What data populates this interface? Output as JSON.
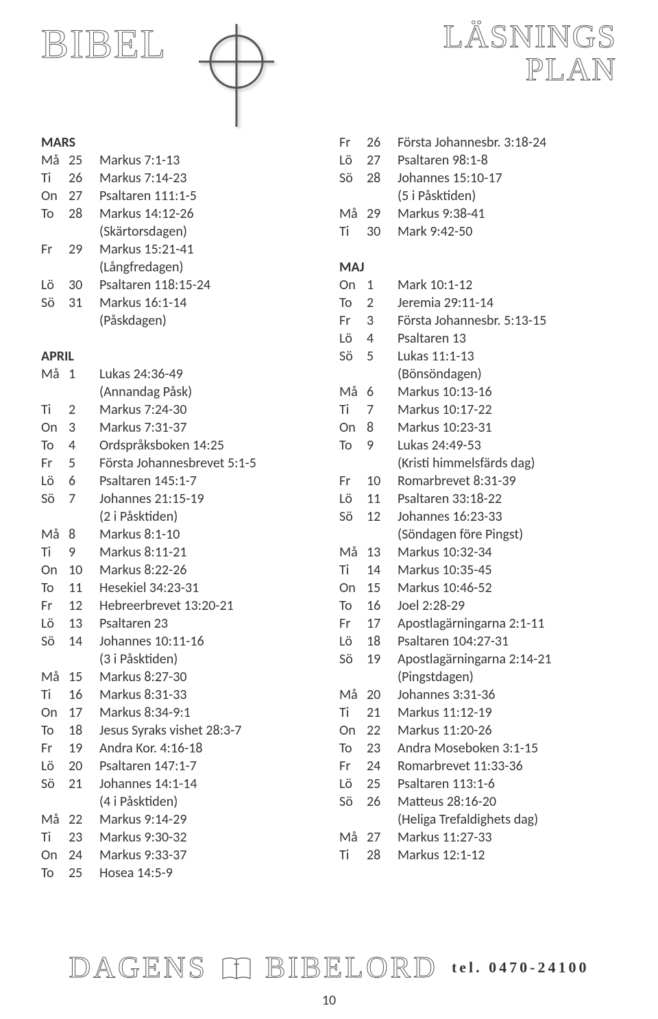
{
  "header": {
    "left": "BIBEL",
    "right_line1": "LÄSNINGS",
    "right_line2": "PLAN"
  },
  "left_column": [
    {
      "type": "month",
      "text": "MARS"
    },
    {
      "type": "row",
      "day": "Må",
      "num": "25",
      "ref": "Markus 7:1-13"
    },
    {
      "type": "row",
      "day": "Ti",
      "num": "26",
      "ref": "Markus 7:14-23"
    },
    {
      "type": "row",
      "day": "On",
      "num": "27",
      "ref": "Psaltaren 111:1-5"
    },
    {
      "type": "row",
      "day": "To",
      "num": "28",
      "ref": "Markus 14:12-26"
    },
    {
      "type": "note",
      "text": "(Skärtorsdagen)"
    },
    {
      "type": "row",
      "day": "Fr",
      "num": "29",
      "ref": "Markus 15:21-41"
    },
    {
      "type": "note",
      "text": "(Långfredagen)"
    },
    {
      "type": "row",
      "day": "Lö",
      "num": "30",
      "ref": "Psaltaren 118:15-24"
    },
    {
      "type": "row",
      "day": "Sö",
      "num": "31",
      "ref": "Markus 16:1-14"
    },
    {
      "type": "note",
      "text": "(Påskdagen)"
    },
    {
      "type": "blank"
    },
    {
      "type": "month",
      "text": "APRIL"
    },
    {
      "type": "row",
      "day": "Må",
      "num": "1",
      "ref": "Lukas 24:36-49"
    },
    {
      "type": "note",
      "text": "(Annandag Påsk)"
    },
    {
      "type": "row",
      "day": "Ti",
      "num": "2",
      "ref": "Markus 7:24-30"
    },
    {
      "type": "row",
      "day": "On",
      "num": "3",
      "ref": "Markus 7:31-37"
    },
    {
      "type": "row",
      "day": "To",
      "num": "4",
      "ref": "Ordspråksboken 14:25"
    },
    {
      "type": "row",
      "day": "Fr",
      "num": "5",
      "ref": "Första Johannesbrevet 5:1-5"
    },
    {
      "type": "row",
      "day": "Lö",
      "num": "6",
      "ref": "Psaltaren 145:1-7"
    },
    {
      "type": "row",
      "day": "Sö",
      "num": "7",
      "ref": "Johannes 21:15-19"
    },
    {
      "type": "note",
      "text": "(2 i Påsktiden)"
    },
    {
      "type": "row",
      "day": "Må",
      "num": "8",
      "ref": "Markus 8:1-10"
    },
    {
      "type": "row",
      "day": "Ti",
      "num": "9",
      "ref": "Markus 8:11-21"
    },
    {
      "type": "row",
      "day": "On",
      "num": "10",
      "ref": "Markus 8:22-26"
    },
    {
      "type": "row",
      "day": "To",
      "num": "11",
      "ref": "Hesekiel 34:23-31"
    },
    {
      "type": "row",
      "day": "Fr",
      "num": "12",
      "ref": "Hebreerbrevet 13:20-21"
    },
    {
      "type": "row",
      "day": "Lö",
      "num": "13",
      "ref": "Psaltaren 23"
    },
    {
      "type": "row",
      "day": "Sö",
      "num": "14",
      "ref": "Johannes 10:11-16"
    },
    {
      "type": "note",
      "text": "(3 i Påsktiden)"
    },
    {
      "type": "row",
      "day": "Må",
      "num": "15",
      "ref": "Markus 8:27-30"
    },
    {
      "type": "row",
      "day": "Ti",
      "num": "16",
      "ref": "Markus 8:31-33"
    },
    {
      "type": "row",
      "day": "On",
      "num": "17",
      "ref": "Markus 8:34-9:1"
    },
    {
      "type": "row",
      "day": "To",
      "num": "18",
      "ref": "Jesus Syraks vishet 28:3-7"
    },
    {
      "type": "row",
      "day": "Fr",
      "num": "19",
      "ref": "Andra Kor. 4:16-18"
    },
    {
      "type": "row",
      "day": "Lö",
      "num": "20",
      "ref": "Psaltaren 147:1-7"
    },
    {
      "type": "row",
      "day": "Sö",
      "num": "21",
      "ref": "Johannes 14:1-14"
    },
    {
      "type": "note",
      "text": "(4 i Påsktiden)"
    },
    {
      "type": "row",
      "day": "Må",
      "num": "22",
      "ref": "Markus 9:14-29"
    },
    {
      "type": "row",
      "day": "Ti",
      "num": "23",
      "ref": "Markus 9:30-32"
    },
    {
      "type": "row",
      "day": "On",
      "num": "24",
      "ref": "Markus 9:33-37"
    },
    {
      "type": "row",
      "day": "To",
      "num": "25",
      "ref": "Hosea 14:5-9"
    }
  ],
  "right_column": [
    {
      "type": "row",
      "day": "Fr",
      "num": "26",
      "ref": "Första Johannesbr. 3:18-24"
    },
    {
      "type": "row",
      "day": "Lö",
      "num": "27",
      "ref": "Psaltaren 98:1-8"
    },
    {
      "type": "row",
      "day": "Sö",
      "num": "28",
      "ref": "Johannes 15:10-17"
    },
    {
      "type": "note",
      "text": "(5 i Påsktiden)"
    },
    {
      "type": "row",
      "day": "Må",
      "num": "29",
      "ref": "Markus 9:38-41"
    },
    {
      "type": "row",
      "day": "Ti",
      "num": "30",
      "ref": "Mark 9:42-50"
    },
    {
      "type": "blank"
    },
    {
      "type": "month",
      "text": "MAJ"
    },
    {
      "type": "row",
      "day": "On",
      "num": "1",
      "ref": "Mark 10:1-12"
    },
    {
      "type": "row",
      "day": "To",
      "num": "2",
      "ref": "Jeremia 29:11-14"
    },
    {
      "type": "row",
      "day": "Fr",
      "num": "3",
      "ref": "Första Johannesbr. 5:13-15"
    },
    {
      "type": "row",
      "day": "Lö",
      "num": "4",
      "ref": "Psaltaren 13"
    },
    {
      "type": "row",
      "day": "Sö",
      "num": "5",
      "ref": "Lukas 11:1-13"
    },
    {
      "type": "note",
      "text": "(Bönsöndagen)"
    },
    {
      "type": "row",
      "day": "Må",
      "num": "6",
      "ref": "Markus 10:13-16"
    },
    {
      "type": "row",
      "day": "Ti",
      "num": "7",
      "ref": "Markus 10:17-22"
    },
    {
      "type": "row",
      "day": "On",
      "num": "8",
      "ref": "Markus 10:23-31"
    },
    {
      "type": "row",
      "day": "To",
      "num": "9",
      "ref": "Lukas 24:49-53"
    },
    {
      "type": "note",
      "text": "(Kristi himmelsfärds dag)"
    },
    {
      "type": "row",
      "day": "Fr",
      "num": "10",
      "ref": "Romarbrevet 8:31-39"
    },
    {
      "type": "row",
      "day": "Lö",
      "num": "11",
      "ref": "Psaltaren 33:18-22"
    },
    {
      "type": "row",
      "day": "Sö",
      "num": "12",
      "ref": "Johannes 16:23-33"
    },
    {
      "type": "note",
      "text": "(Söndagen före Pingst)"
    },
    {
      "type": "row",
      "day": "Må",
      "num": "13",
      "ref": "Markus 10:32-34"
    },
    {
      "type": "row",
      "day": "Ti",
      "num": "14",
      "ref": "Markus 10:35-45"
    },
    {
      "type": "row",
      "day": "On",
      "num": "15",
      "ref": "Markus 10:46-52"
    },
    {
      "type": "row",
      "day": "To",
      "num": "16",
      "ref": "Joel 2:28-29"
    },
    {
      "type": "row",
      "day": "Fr",
      "num": "17",
      "ref": "Apostlagärningarna 2:1-11"
    },
    {
      "type": "row",
      "day": "Lö",
      "num": "18",
      "ref": "Psaltaren 104:27-31"
    },
    {
      "type": "row",
      "day": "Sö",
      "num": "19",
      "ref": "Apostlagärningarna 2:14-21"
    },
    {
      "type": "note",
      "text": "(Pingstdagen)"
    },
    {
      "type": "row",
      "day": "Må",
      "num": "20",
      "ref": "Johannes 3:31-36"
    },
    {
      "type": "row",
      "day": "Ti",
      "num": "21",
      "ref": "Markus 11:12-19"
    },
    {
      "type": "row",
      "day": "On",
      "num": "22",
      "ref": "Markus 11:20-26"
    },
    {
      "type": "row",
      "day": "To",
      "num": "23",
      "ref": "Andra Moseboken 3:1-15"
    },
    {
      "type": "row",
      "day": "Fr",
      "num": "24",
      "ref": "Romarbrevet 11:33-36"
    },
    {
      "type": "row",
      "day": "Lö",
      "num": "25",
      "ref": "Psaltaren 113:1-6"
    },
    {
      "type": "row",
      "day": "Sö",
      "num": "26",
      "ref": "Matteus 28:16-20"
    },
    {
      "type": "note",
      "text": "(Heliga Trefaldighets dag)"
    },
    {
      "type": "row",
      "day": "Må",
      "num": "27",
      "ref": "Markus 11:27-33"
    },
    {
      "type": "row",
      "day": "Ti",
      "num": "28",
      "ref": "Markus 12:1-12"
    }
  ],
  "footer": {
    "left": "DAGENS",
    "right": "BIBELORD",
    "phone_label": "tel.",
    "phone": "0470-24100"
  },
  "page_number": "10"
}
